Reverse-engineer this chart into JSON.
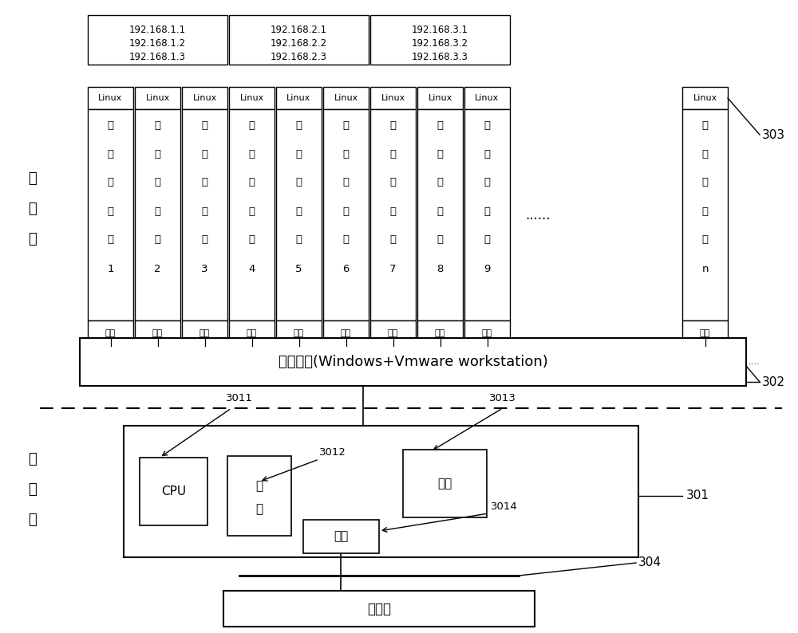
{
  "bg_color": "#ffffff",
  "vm_labels": [
    "1",
    "2",
    "3",
    "4",
    "5",
    "6",
    "7",
    "8",
    "9",
    "n"
  ],
  "ip_groups": [
    {
      "ips": [
        "192.168.1.1",
        "192.168.1.2",
        "192.168.1.3"
      ]
    },
    {
      "ips": [
        "192.168.2.1",
        "192.168.2.2",
        "192.168.2.3"
      ]
    },
    {
      "ips": [
        "192.168.3.1",
        "192.168.3.2",
        "192.168.3.3"
      ]
    }
  ],
  "virt_layer_text": "虚拟化层(Windows+Vmware workstation)",
  "software_layer_label": "软件层",
  "hardware_layer_label": "硬件层",
  "label_302": "302",
  "label_303": "303",
  "label_301": "301",
  "label_304": "304",
  "label_3011": "3011",
  "label_3012": "3012",
  "label_3013": "3013",
  "label_3014": "3014",
  "cpu_text": "CPU",
  "memory_text": "内存",
  "harddisk_text": "硬盘",
  "network_text": "网路",
  "switch_text": "交换机",
  "disk_label": "磁盘",
  "linux_label": "Linux",
  "dots_text": "......",
  "vm_chars": [
    "测",
    "试",
    "虚",
    "拟",
    "机"
  ]
}
